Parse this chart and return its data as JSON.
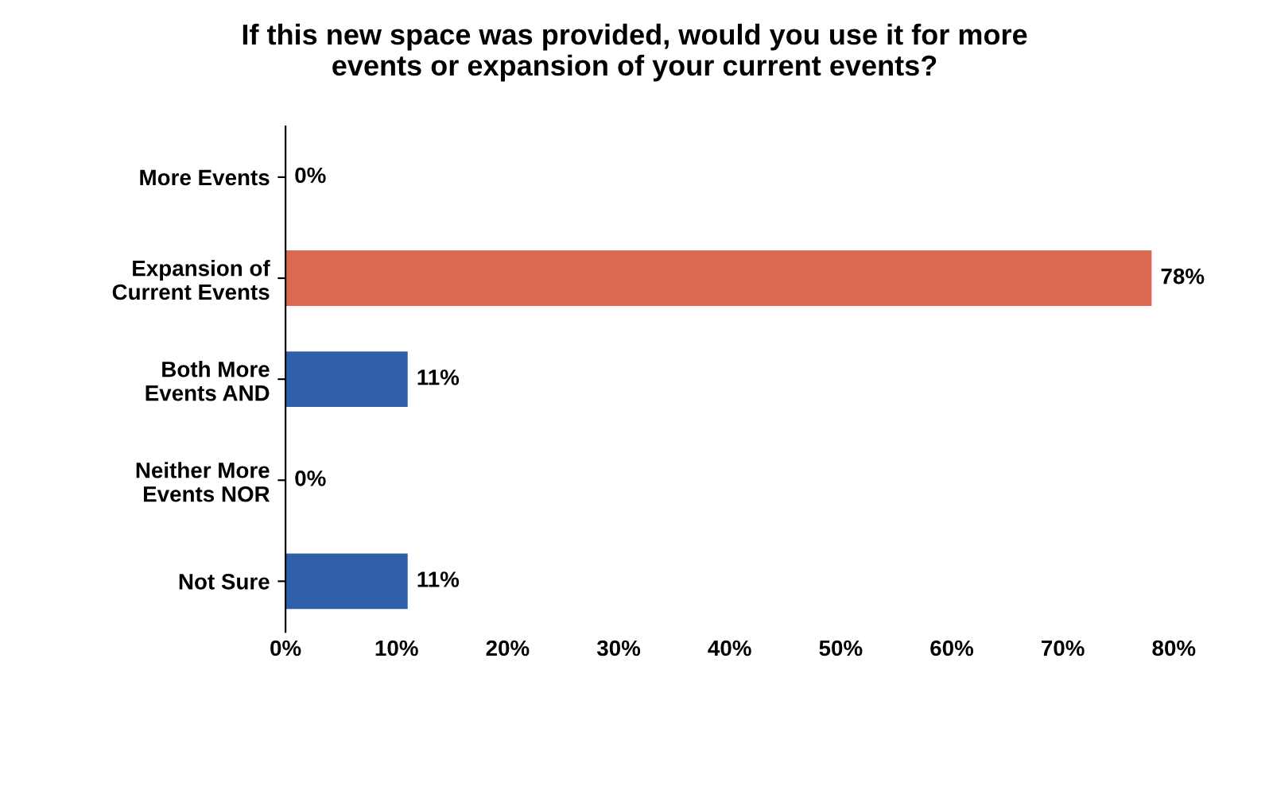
{
  "chart_data": {
    "type": "bar",
    "orientation": "horizontal",
    "title": "If this new space was provided, would you use it for more\nevents or expansion of your current events?",
    "categories": [
      "More Events",
      "Expansion of\nCurrent Events",
      "Both More\nEvents AND",
      "Neither More\nEvents NOR",
      "Not Sure"
    ],
    "values": [
      0,
      78,
      11,
      0,
      11
    ],
    "colors": [
      "#7a7a9a",
      "#d9694f",
      "#2f5fa8",
      "#7a7a9a",
      "#2f5fa8"
    ],
    "value_labels": [
      "0%",
      "78%",
      "11%",
      "0%",
      "11%"
    ],
    "xlim": [
      0,
      80
    ],
    "xticks": [
      {
        "value": 0,
        "label": "0%"
      },
      {
        "value": 10,
        "label": "10%"
      },
      {
        "value": 20,
        "label": "20%"
      },
      {
        "value": 30,
        "label": "30%"
      },
      {
        "value": 40,
        "label": "40%"
      },
      {
        "value": 50,
        "label": "50%"
      },
      {
        "value": 60,
        "label": "60%"
      },
      {
        "value": 70,
        "label": "70%"
      },
      {
        "value": 80,
        "label": "80%"
      }
    ],
    "grid": false,
    "legend": false
  }
}
